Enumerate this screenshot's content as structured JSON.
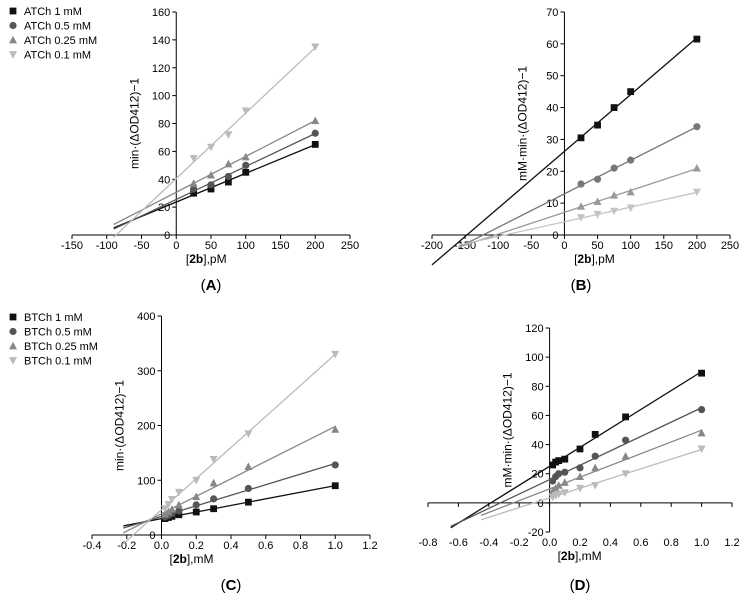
{
  "chart_data": [
    {
      "id": "A",
      "panel_label": "(A)",
      "type": "scatter",
      "x_label": "[2b],pM",
      "y_label": "min·(ΔOD412)−1",
      "xlim": [
        -150,
        250
      ],
      "ylim": [
        0,
        160
      ],
      "x_ticks": [
        -150,
        -100,
        -50,
        0,
        50,
        100,
        150,
        200,
        250
      ],
      "y_ticks": [
        0,
        20,
        40,
        60,
        80,
        100,
        120,
        140,
        160
      ],
      "legend_position": "top-left",
      "series": [
        {
          "name": "ATCh 1 mM",
          "marker": "square",
          "color": "#111111",
          "x": [
            25,
            50,
            75,
            100,
            200
          ],
          "y": [
            30,
            33,
            38,
            45,
            65
          ],
          "fit_x_from": -90
        },
        {
          "name": "ATCh 0.5 mM",
          "marker": "circle",
          "color": "#555555",
          "x": [
            25,
            50,
            75,
            100,
            200
          ],
          "y": [
            33,
            36,
            42,
            50,
            73
          ],
          "fit_x_from": -90
        },
        {
          "name": "ATCh 0.25 mM",
          "marker": "triangle-up",
          "color": "#888888",
          "x": [
            25,
            50,
            75,
            100,
            200
          ],
          "y": [
            37,
            43,
            51,
            56,
            82
          ],
          "fit_x_from": -90
        },
        {
          "name": "ATCh 0.1 mM",
          "marker": "triangle-down",
          "color": "#bbbbbb",
          "x": [
            25,
            50,
            75,
            100,
            200
          ],
          "y": [
            55,
            63,
            72,
            89,
            135
          ],
          "fit_x_from": -90
        }
      ]
    },
    {
      "id": "B",
      "panel_label": "(B)",
      "type": "scatter",
      "x_label": "[2b],pM",
      "y_label": "mM·min·(ΔOD412)−1",
      "xlim": [
        -200,
        250
      ],
      "ylim": [
        0,
        70
      ],
      "x_ticks": [
        -200,
        -150,
        -100,
        -50,
        0,
        50,
        100,
        150,
        200,
        250
      ],
      "y_ticks": [
        0,
        10,
        20,
        30,
        40,
        50,
        60,
        70
      ],
      "legend_position": "none",
      "series": [
        {
          "name": "ATCh 1 mM",
          "marker": "square",
          "color": "#111111",
          "x": [
            25,
            50,
            75,
            100,
            200
          ],
          "y": [
            30.5,
            34.5,
            40,
            45,
            61.5
          ],
          "fit_x_from": -200
        },
        {
          "name": "ATCh 0.5 mM",
          "marker": "circle",
          "color": "#777777",
          "x": [
            25,
            50,
            75,
            100,
            200
          ],
          "y": [
            16,
            17.5,
            21,
            23.5,
            34
          ],
          "fit_x_from": -160
        },
        {
          "name": "ATCh 0.25 mM",
          "marker": "triangle-up",
          "color": "#999999",
          "x": [
            25,
            50,
            75,
            100,
            200
          ],
          "y": [
            9,
            10.5,
            12.5,
            13.5,
            21
          ],
          "fit_x_from": -160
        },
        {
          "name": "ATCh 0.1 mM",
          "marker": "triangle-down",
          "color": "#c4c4c4",
          "x": [
            25,
            50,
            75,
            100,
            200
          ],
          "y": [
            5.5,
            6.5,
            7.5,
            8.5,
            13.5
          ],
          "fit_x_from": -160
        }
      ]
    },
    {
      "id": "C",
      "panel_label": "(C)",
      "type": "scatter",
      "x_label": "[2b],mM",
      "y_label": "min·(ΔOD412)−1",
      "xlim": [
        -0.4,
        1.2
      ],
      "ylim": [
        0,
        400
      ],
      "x_ticks": [
        -0.4,
        -0.2,
        0.0,
        0.2,
        0.4,
        0.6,
        0.8,
        1.0,
        1.2
      ],
      "y_ticks": [
        0,
        100,
        200,
        300,
        400
      ],
      "legend_position": "top-left",
      "series": [
        {
          "name": "BTCh 1 mM",
          "marker": "square",
          "color": "#111111",
          "x": [
            0.02,
            0.04,
            0.06,
            0.1,
            0.2,
            0.3,
            0.5,
            1.0
          ],
          "y": [
            30,
            32,
            34,
            37,
            42,
            48,
            60,
            90
          ],
          "fit_x_from": -0.22
        },
        {
          "name": "BTCh 0.5 mM",
          "marker": "circle",
          "color": "#555555",
          "x": [
            0.02,
            0.04,
            0.06,
            0.1,
            0.2,
            0.3,
            0.5,
            1.0
          ],
          "y": [
            33,
            36,
            39,
            44,
            55,
            66,
            85,
            128
          ],
          "fit_x_from": -0.22
        },
        {
          "name": "BTCh 0.25 mM",
          "marker": "triangle-up",
          "color": "#888888",
          "x": [
            0.02,
            0.04,
            0.06,
            0.1,
            0.2,
            0.3,
            0.5,
            1.0
          ],
          "y": [
            38,
            42,
            47,
            55,
            70,
            95,
            125,
            193
          ],
          "fit_x_from": -0.22
        },
        {
          "name": "BTCh 0.1 mM",
          "marker": "triangle-down",
          "color": "#bbbbbb",
          "x": [
            0.02,
            0.04,
            0.06,
            0.1,
            0.2,
            0.3,
            0.5,
            1.0
          ],
          "y": [
            48,
            56,
            65,
            78,
            100,
            138,
            185,
            330
          ],
          "fit_x_from": -0.22
        }
      ]
    },
    {
      "id": "D",
      "panel_label": "(D)",
      "type": "scatter",
      "x_label": "[2b],mM",
      "y_label": "mM·min·(ΔOD412)−1",
      "xlim": [
        -0.8,
        1.2
      ],
      "ylim": [
        -20,
        120
      ],
      "x_ticks": [
        -0.8,
        -0.6,
        -0.4,
        -0.2,
        0.0,
        0.2,
        0.4,
        0.6,
        0.8,
        1.0,
        1.2
      ],
      "y_ticks": [
        -20,
        0,
        20,
        40,
        60,
        80,
        100,
        120
      ],
      "legend_position": "none",
      "series": [
        {
          "name": "BTCh 1 mM",
          "marker": "square",
          "color": "#111111",
          "x": [
            0.02,
            0.04,
            0.06,
            0.1,
            0.2,
            0.3,
            0.5,
            1.0
          ],
          "y": [
            26,
            28,
            29,
            30,
            37,
            47,
            59,
            89
          ],
          "fit_x_from": -0.65
        },
        {
          "name": "BTCh 0.5 mM",
          "marker": "circle",
          "color": "#555555",
          "x": [
            0.02,
            0.04,
            0.06,
            0.1,
            0.2,
            0.3,
            0.5,
            1.0
          ],
          "y": [
            15,
            18,
            20,
            21,
            24,
            32,
            43,
            64
          ],
          "fit_x_from": -0.65
        },
        {
          "name": "BTCh 0.25 mM",
          "marker": "triangle-up",
          "color": "#888888",
          "x": [
            0.02,
            0.04,
            0.06,
            0.1,
            0.2,
            0.3,
            0.5,
            1.0
          ],
          "y": [
            8,
            10,
            12,
            14,
            18,
            24,
            32,
            48
          ],
          "fit_x_from": -0.45
        },
        {
          "name": "BTCh 0.1 mM",
          "marker": "triangle-down",
          "color": "#bbbbbb",
          "x": [
            0.02,
            0.04,
            0.06,
            0.1,
            0.2,
            0.3,
            0.5,
            1.0
          ],
          "y": [
            4,
            5,
            6,
            7,
            10,
            12,
            20,
            37
          ],
          "fit_x_from": -0.45
        }
      ]
    }
  ]
}
